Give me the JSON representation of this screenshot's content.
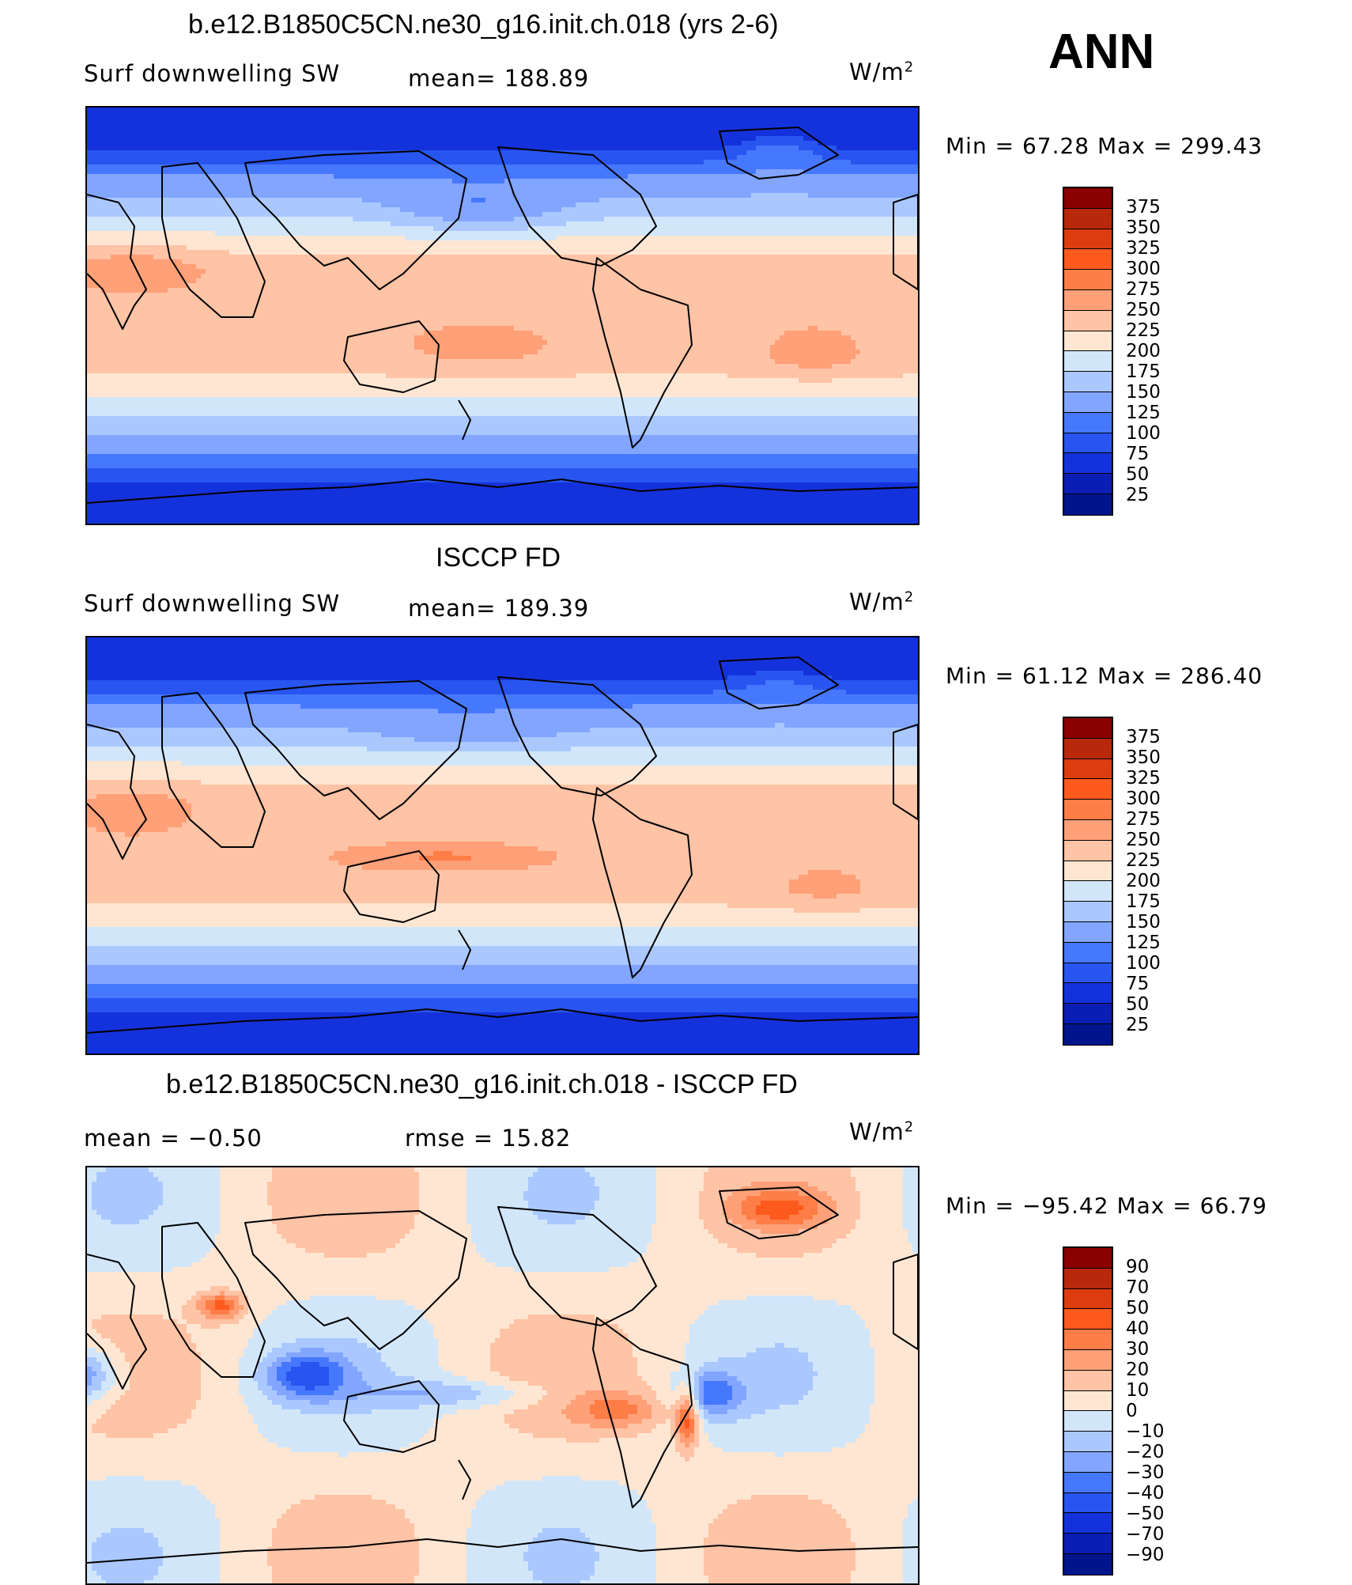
{
  "season": "ANN",
  "units_label": "W/m",
  "units_sup": "2",
  "panels": [
    {
      "title": "b.e12.B1850C5CN.ne30_g16.init.ch.018 (yrs 2-6)",
      "left_label": "Surf  downwelling SW",
      "center_label": "mean=  188.89",
      "minmax": "Min  =    67.28  Max  =  299.43",
      "levels": [
        "375",
        "350",
        "325",
        "300",
        "275",
        "250",
        "225",
        "200",
        "175",
        "150",
        "125",
        "100",
        "75",
        "50",
        "25"
      ],
      "colors": [
        "#8b0000",
        "#b8280a",
        "#dc3c0f",
        "#ff5a1e",
        "#ff7d46",
        "#ffa078",
        "#ffc3a5",
        "#ffe6d2",
        "#d2e6fa",
        "#aac8ff",
        "#82a5ff",
        "#4678ff",
        "#2855f0",
        "#1432dc",
        "#0a1eb4",
        "#00148c"
      ],
      "colormap": "model"
    },
    {
      "title": "ISCCP FD",
      "left_label": "Surf  downwelling SW",
      "center_label": "mean=  189.39",
      "minmax": "Min  =    61.12  Max  =  286.40",
      "levels": [
        "375",
        "350",
        "325",
        "300",
        "275",
        "250",
        "225",
        "200",
        "175",
        "150",
        "125",
        "100",
        "75",
        "50",
        "25"
      ],
      "colors": [
        "#8b0000",
        "#b8280a",
        "#dc3c0f",
        "#ff5a1e",
        "#ff7d46",
        "#ffa078",
        "#ffc3a5",
        "#ffe6d2",
        "#d2e6fa",
        "#aac8ff",
        "#82a5ff",
        "#4678ff",
        "#2855f0",
        "#1432dc",
        "#0a1eb4",
        "#00148c"
      ],
      "colormap": "obs"
    },
    {
      "title": "b.e12.B1850C5CN.ne30_g16.init.ch.018 - ISCCP FD",
      "left_label": "mean  =    −0.50",
      "center_label": "rmse  =    15.82",
      "minmax": "Min  =  −95.42  Max  =    66.79",
      "levels": [
        "90",
        "70",
        "50",
        "40",
        "30",
        "20",
        "10",
        "0",
        "−10",
        "−20",
        "−30",
        "−40",
        "−50",
        "−70",
        "−90"
      ],
      "colors": [
        "#8b0000",
        "#b8280a",
        "#dc3c0f",
        "#ff5a1e",
        "#ff7d46",
        "#ffa078",
        "#ffc3a5",
        "#ffe6d2",
        "#d2e6fa",
        "#aac8ff",
        "#82a5ff",
        "#4678ff",
        "#2855f0",
        "#1432dc",
        "#0a1eb4",
        "#00148c"
      ],
      "colormap": "diff"
    }
  ],
  "chart_data": [
    {
      "type": "heatmap",
      "title": "b.e12.B1850C5CN.ne30_g16.init.ch.018 (yrs 2-6)",
      "variable": "Surf  downwelling SW",
      "units": "W/m2",
      "mean": 188.89,
      "min": 67.28,
      "max": 299.43,
      "contour_levels": [
        25,
        50,
        75,
        100,
        125,
        150,
        175,
        200,
        225,
        250,
        275,
        300,
        325,
        350,
        375
      ]
    },
    {
      "type": "heatmap",
      "title": "ISCCP FD",
      "variable": "Surf  downwelling SW",
      "units": "W/m2",
      "mean": 189.39,
      "min": 61.12,
      "max": 286.4,
      "contour_levels": [
        25,
        50,
        75,
        100,
        125,
        150,
        175,
        200,
        225,
        250,
        275,
        300,
        325,
        350,
        375
      ]
    },
    {
      "type": "heatmap",
      "title": "b.e12.B1850C5CN.ne30_g16.init.ch.018 - ISCCP FD",
      "units": "W/m2",
      "mean": -0.5,
      "rmse": 15.82,
      "min": -95.42,
      "max": 66.79,
      "contour_levels": [
        -90,
        -70,
        -50,
        -40,
        -30,
        -20,
        -10,
        0,
        10,
        20,
        30,
        40,
        50,
        70,
        90
      ]
    }
  ]
}
